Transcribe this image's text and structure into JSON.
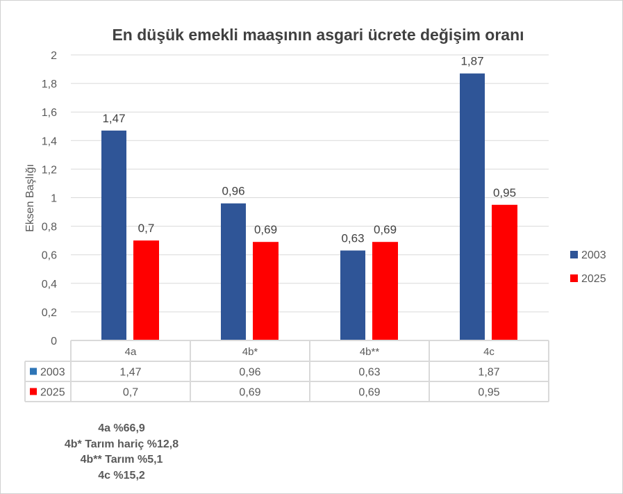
{
  "chart_data": {
    "type": "bar",
    "title": "En düşük emekli maaşının asgari ücrete değişim oranı",
    "xlabel": "",
    "ylabel": "Eksen Başlığı",
    "ylim": [
      0,
      2
    ],
    "yticks": [
      "0",
      "0,2",
      "0,4",
      "0,6",
      "0,8",
      "1",
      "1,2",
      "1,4",
      "1,6",
      "1,8",
      "2"
    ],
    "categories": [
      "4a",
      "4b*",
      "4b**",
      "4c"
    ],
    "series": [
      {
        "name": "2003",
        "color": "#2F5597",
        "legend_color": "#2E75B6",
        "values": [
          1.47,
          0.96,
          0.63,
          1.87
        ],
        "labels": [
          "1,47",
          "0,96",
          "0,63",
          "1,87"
        ]
      },
      {
        "name": "2025",
        "color": "#FF0000",
        "legend_color": "#FF0000",
        "values": [
          0.7,
          0.69,
          0.69,
          0.95
        ],
        "labels": [
          "0,7",
          "0,69",
          "0,69",
          "0,95"
        ]
      }
    ],
    "grid": true,
    "legend_placement": "right",
    "data_table": true
  },
  "notes": [
    "4a %66,9",
    "4b* Tarım hariç %12,8",
    "4b** Tarım %5,1",
    "4c %15,2"
  ]
}
